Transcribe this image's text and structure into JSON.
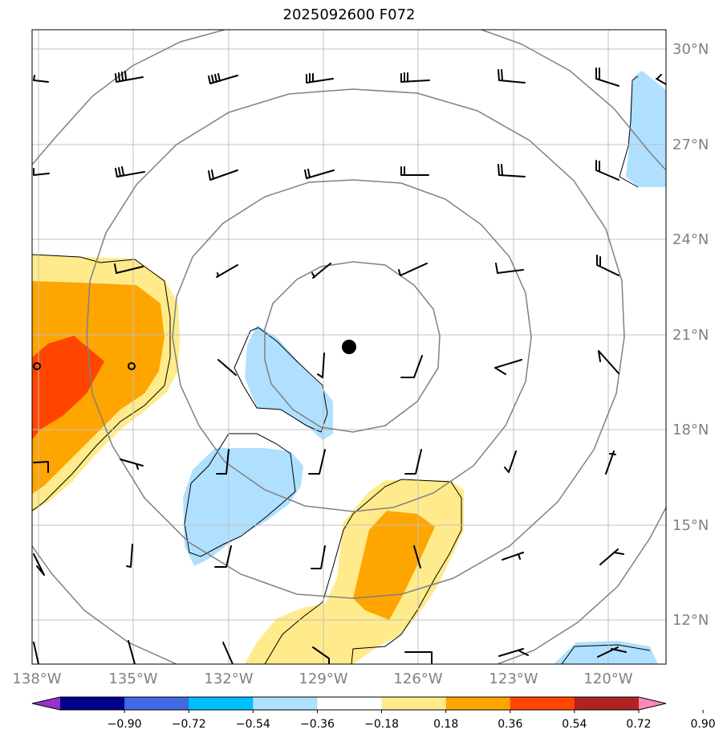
{
  "title": "2025092600 F072",
  "lat_labels": [
    "30°N",
    "27°N",
    "24°N",
    "21°N",
    "18°N",
    "15°N",
    "12°N"
  ],
  "lon_labels": [
    "138°W",
    "135°W",
    "132°W",
    "129°W",
    "126°W",
    "123°W",
    "120°W"
  ],
  "center_marker": {
    "lat": 20.6,
    "lon": -128.2
  },
  "colorbar": {
    "ticks": [
      "−0.90",
      "−0.72",
      "−0.54",
      "−0.36",
      "−0.18",
      "0.18",
      "0.36",
      "0.54",
      "0.72",
      "0.90"
    ],
    "colors": [
      "#9932cc",
      "#00008b",
      "#4169e1",
      "#00bfff",
      "#b0e0ff",
      "#ffffff",
      "#ffeb8c",
      "#ffa500",
      "#ff4500",
      "#b22222",
      "#ff88bb"
    ]
  },
  "colors": {
    "grid": "#c0c0c0",
    "rings": "#808080",
    "barb": "#000000",
    "frame": "#000000"
  }
}
